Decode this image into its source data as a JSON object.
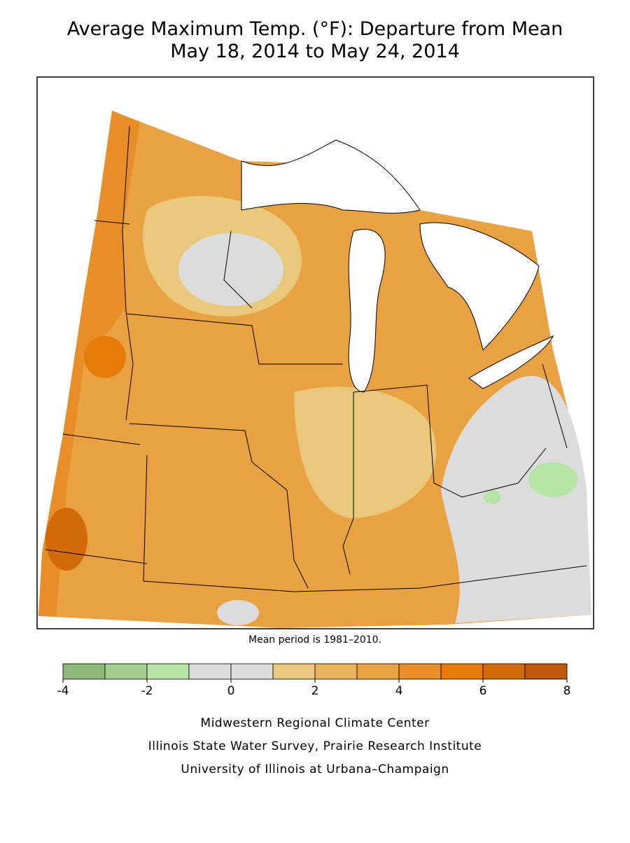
{
  "title": [
    "Average Maximum Temp. (°F): Departure from Mean",
    "May 18, 2014 to May 24, 2014"
  ],
  "note": "Mean period is 1981–2010.",
  "legend": {
    "bins": [
      -4,
      -3,
      -2,
      -1,
      0,
      1,
      2,
      3,
      4,
      5,
      6,
      7,
      8
    ],
    "colors": [
      "#8db87a",
      "#a3cf8e",
      "#b6e4a5",
      "#dcdcdc",
      "#dcdcdc",
      "#e9c87c",
      "#e9b45c",
      "#e9a142",
      "#e88d28",
      "#e67b0a",
      "#d2690a",
      "#c0580a"
    ],
    "ticks": [
      -4,
      -2,
      0,
      2,
      4,
      6,
      8
    ]
  },
  "credits": [
    "Midwestern Regional Climate Center",
    "Illinois State Water Survey, Prairie Research Institute",
    "University of Illinois at Urbana–Champaign"
  ]
}
